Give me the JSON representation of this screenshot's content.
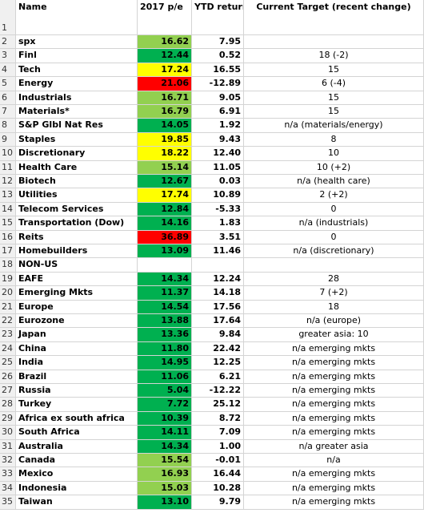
{
  "header": {
    "row_number": "1",
    "name": "Name",
    "pe": "2017 p/e",
    "ytd": "YTD return",
    "target": "Current Target (recent change)"
  },
  "rows": [
    {
      "n": "2",
      "name": "spx",
      "pe": "16.62",
      "ytd": "7.95",
      "color": "#92d050"
    },
    {
      "n": "3",
      "name": "Finl",
      "pe": "12.44",
      "ytd": "0.52",
      "target": "18 (-2)",
      "color": "#00b050"
    },
    {
      "n": "4",
      "name": "Tech",
      "pe": "17.24",
      "ytd": "16.55",
      "target": "15",
      "color": "#ffff00"
    },
    {
      "n": "5",
      "name": "Energy",
      "pe": "21.06",
      "ytd": "-12.89",
      "target": "6 (-4)",
      "color": "#ff0000"
    },
    {
      "n": "6",
      "name": "Industrials",
      "pe": "16.71",
      "ytd": "9.05",
      "target": "15",
      "color": "#92d050"
    },
    {
      "n": "7",
      "name": "Materials*",
      "pe": "16.79",
      "ytd": "6.91",
      "target": "15",
      "color": "#92d050"
    },
    {
      "n": "8",
      "name": "S&P Glbl Nat Res",
      "pe": "14.05",
      "ytd": "1.92",
      "target": "n/a (materials/energy)",
      "color": "#00b050"
    },
    {
      "n": "9",
      "name": "Staples",
      "pe": "19.85",
      "ytd": "9.43",
      "target": "8",
      "color": "#ffff00"
    },
    {
      "n": "10",
      "name": "Discretionary",
      "pe": "18.22",
      "ytd": "12.40",
      "target": "10",
      "color": "#ffff00"
    },
    {
      "n": "11",
      "name": "Health Care",
      "pe": "15.14",
      "ytd": "11.05",
      "target": "10 (+2)",
      "color": "#92d050"
    },
    {
      "n": "12",
      "name": "Biotech",
      "pe": "12.67",
      "ytd": "0.03",
      "target": "n/a (health care)",
      "color": "#00b050"
    },
    {
      "n": "13",
      "name": "Utilities",
      "pe": "17.74",
      "ytd": "10.89",
      "target": "2 (+2)",
      "color": "#ffff00"
    },
    {
      "n": "14",
      "name": "Telecom Services",
      "pe": "12.84",
      "ytd": "-5.33",
      "target": "0",
      "color": "#00b050"
    },
    {
      "n": "15",
      "name": "Transportation (Dow)",
      "pe": "14.16",
      "ytd": "1.83",
      "target": "n/a (industrials)",
      "color": "#00b050"
    },
    {
      "n": "16",
      "name": "Reits",
      "pe": "36.89",
      "ytd": "3.51",
      "target": "0",
      "color": "#ff0000"
    },
    {
      "n": "17",
      "name": "Homebuilders",
      "pe": "13.09",
      "ytd": "11.46",
      "target": "n/a (discretionary)",
      "color": "#00b050"
    },
    {
      "n": "18",
      "name": "NON-US"
    },
    {
      "n": "19",
      "name": "EAFE",
      "pe": "14.34",
      "ytd": "12.24",
      "target": "28",
      "color": "#00b050"
    },
    {
      "n": "20",
      "name": "Emerging Mkts",
      "pe": "11.37",
      "ytd": "14.18",
      "target": "7 (+2)",
      "color": "#00b050"
    },
    {
      "n": "21",
      "name": "Europe",
      "pe": "14.54",
      "ytd": "17.56",
      "target": "18",
      "color": "#00b050"
    },
    {
      "n": "22",
      "name": "Eurozone",
      "pe": "13.88",
      "ytd": "17.64",
      "target": "n/a (europe)",
      "color": "#00b050"
    },
    {
      "n": "23",
      "name": "Japan",
      "pe": "13.36",
      "ytd": "9.84",
      "target": "greater asia: 10",
      "color": "#00b050"
    },
    {
      "n": "24",
      "name": "China",
      "pe": "11.80",
      "ytd": "22.42",
      "target": "n/a emerging mkts",
      "color": "#00b050"
    },
    {
      "n": "25",
      "name": "India",
      "pe": "14.95",
      "ytd": "12.25",
      "target": "n/a emerging mkts",
      "color": "#00b050"
    },
    {
      "n": "26",
      "name": "Brazil",
      "pe": "11.06",
      "ytd": "6.21",
      "target": "n/a emerging mkts",
      "color": "#00b050"
    },
    {
      "n": "27",
      "name": "Russia",
      "pe": "5.04",
      "ytd": "-12.22",
      "target": "n/a emerging mkts",
      "color": "#00b050"
    },
    {
      "n": "28",
      "name": "Turkey",
      "pe": "7.72",
      "ytd": "25.12",
      "target": "n/a emerging mkts",
      "color": "#00b050"
    },
    {
      "n": "29",
      "name": "Africa ex south africa",
      "pe": "10.39",
      "ytd": "8.72",
      "target": "n/a emerging mkts",
      "color": "#00b050"
    },
    {
      "n": "30",
      "name": "South Africa",
      "pe": "14.11",
      "ytd": "7.09",
      "target": "n/a emerging mkts",
      "color": "#00b050"
    },
    {
      "n": "31",
      "name": "Australia",
      "pe": "14.34",
      "ytd": "1.00",
      "target": "n/a greater asia",
      "color": "#00b050"
    },
    {
      "n": "32",
      "name": "Canada",
      "pe": "15.54",
      "ytd": "-0.01",
      "target": "n/a",
      "color": "#92d050"
    },
    {
      "n": "33",
      "name": "Mexico",
      "pe": "16.93",
      "ytd": "16.44",
      "target": "n/a emerging mkts",
      "color": "#92d050"
    },
    {
      "n": "34",
      "name": "Indonesia",
      "pe": "15.03",
      "ytd": "10.28",
      "target": "n/a emerging mkts",
      "color": "#92d050"
    },
    {
      "n": "35",
      "name": "Taiwan",
      "pe": "13.10",
      "ytd": "9.79",
      "target": "n/a emerging mkts",
      "color": "#00b050"
    }
  ]
}
